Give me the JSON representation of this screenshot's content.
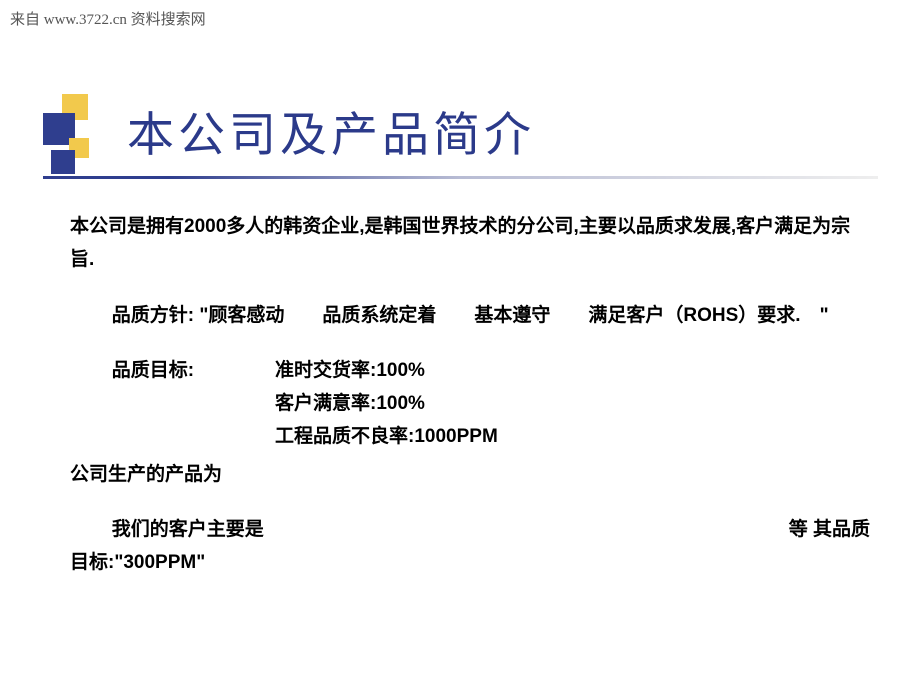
{
  "watermark": "来自  www.3722.cn 资料搜索网",
  "title": "本公司及产品简介",
  "colors": {
    "title_color": "#2b3a8a",
    "accent_blue": "#2f3e8e",
    "accent_yellow": "#f2c94c",
    "text_color": "#000000",
    "background": "#ffffff"
  },
  "body": {
    "intro": "本公司是拥有2000多人的韩资企业,是韩国世界技术的分公司,主要以品质求发展,客户满足为宗旨.",
    "policy": "品质方针: \"顾客感动　　品质系统定着　　基本遵守　　满足客户（ROHS）要求.　\"",
    "goals_label": "品质目标:",
    "goals": [
      "准时交货率:100%",
      "客户满意率:100%",
      "工程品质不良率:1000PPM"
    ],
    "products": "公司生产的产品为",
    "customers_left": "我们的客户主要是",
    "customers_right": "等 其品质",
    "target": "目标:\"300PPM\""
  }
}
